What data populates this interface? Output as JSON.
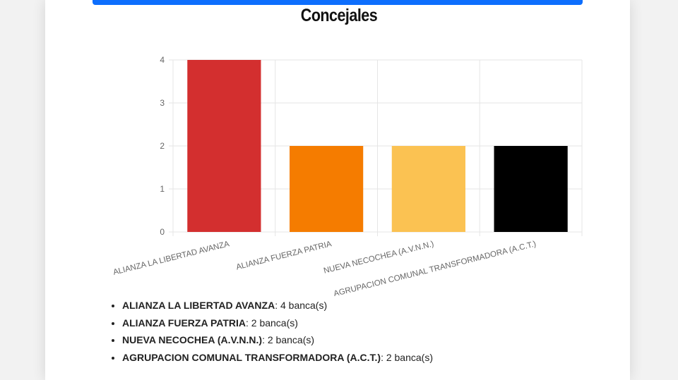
{
  "colors": {
    "accent_bar": "#0d6efd",
    "grid": "#e5e5e5"
  },
  "chart_data": {
    "type": "bar",
    "title": "Concejales",
    "categories": [
      "ALIANZA LA LIBERTAD AVANZA",
      "ALIANZA FUERZA PATRIA",
      "NUEVA NECOCHEA (A.V.N.N.)",
      "AGRUPACION COMUNAL TRANSFORMADORA (A.C.T.)"
    ],
    "values": [
      4,
      2,
      2,
      2
    ],
    "bar_colors": [
      "#d32f2f",
      "#f57c00",
      "#fbc252",
      "#000000"
    ],
    "ylim": [
      0,
      4
    ],
    "yticks": [
      "0",
      "1",
      "2",
      "3",
      "4"
    ],
    "grid": true,
    "legend": "none"
  },
  "results_list": [
    {
      "party": "ALIANZA LA LIBERTAD AVANZA",
      "text": ": 4 banca(s)"
    },
    {
      "party": "ALIANZA FUERZA PATRIA",
      "text": ": 2 banca(s)"
    },
    {
      "party": "NUEVA NECOCHEA (A.V.N.N.)",
      "text": ": 2 banca(s)"
    },
    {
      "party": "AGRUPACION COMUNAL TRANSFORMADORA (A.C.T.)",
      "text": ": 2 banca(s)"
    }
  ]
}
